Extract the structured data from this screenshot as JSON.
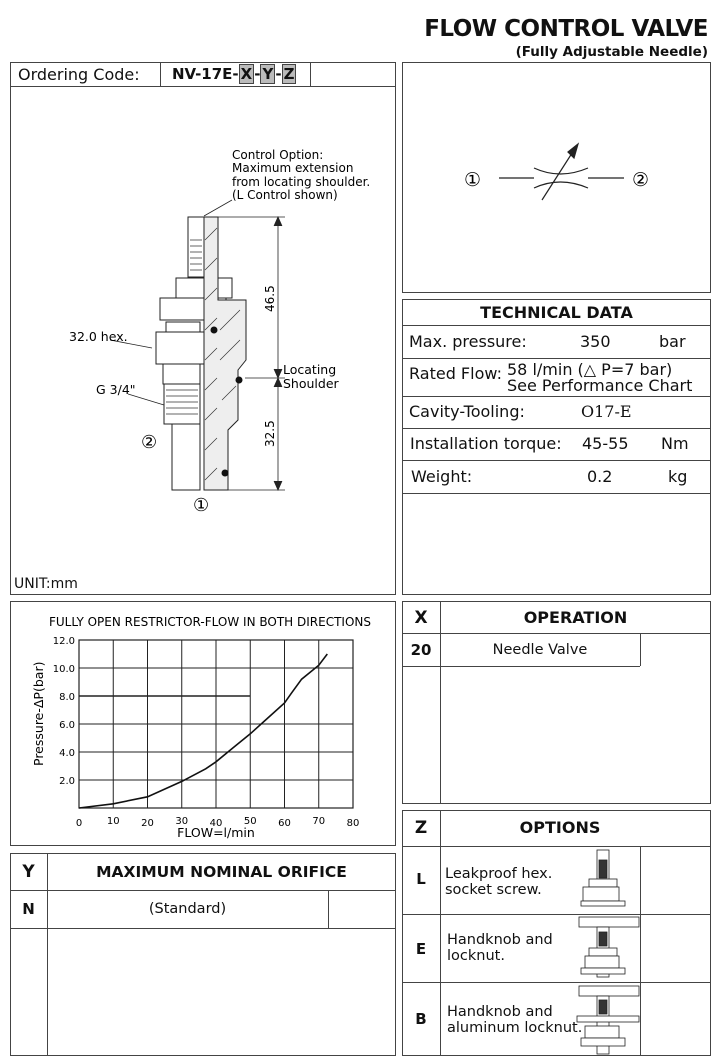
{
  "header": {
    "title": "FLOW CONTROL VALVE",
    "subtitle": "(Fully Adjustable Needle)"
  },
  "ordering": {
    "label": "Ordering Code:",
    "code_prefix": "NV-17E-",
    "x": "X",
    "y": "Y",
    "z": "Z"
  },
  "drawing": {
    "control_note": [
      "Control Option:",
      "Maximum extension",
      "from locating shoulder.",
      "(L Control shown)"
    ],
    "dim_upper": "46.5",
    "dim_lower": "32.5",
    "shoulder": [
      "Locating",
      "Shoulder"
    ],
    "hex": "32.0 hex.",
    "thread": "G 3/4\"",
    "port1": "①",
    "port2": "②",
    "unit": "UNIT:mm"
  },
  "symbol": {
    "port1": "①",
    "port2": "②"
  },
  "technical": {
    "title": "TECHNICAL DATA",
    "max_pressure": {
      "label": "Max. pressure:",
      "value": "350",
      "unit": "bar"
    },
    "rated_flow": {
      "label": "Rated Flow:",
      "value": "58 l/min (△ P=7 bar)",
      "note": "See Performance Chart"
    },
    "cavity": {
      "label": "Cavity-Tooling:",
      "value": "O17-E"
    },
    "torque": {
      "label": "Installation torque:",
      "value": "45-55",
      "unit": "Nm"
    },
    "weight": {
      "label": "Weight:",
      "value": "0.2",
      "unit": "kg"
    }
  },
  "operation": {
    "code": "X",
    "title": "OPERATION",
    "rows": [
      {
        "code": "20",
        "label": "Needle Valve"
      }
    ]
  },
  "orifice": {
    "code": "Y",
    "title": "MAXIMUM NOMINAL ORIFICE",
    "rows": [
      {
        "code": "N",
        "label": "(Standard)"
      }
    ]
  },
  "options": {
    "code": "Z",
    "title": "OPTIONS",
    "rows": [
      {
        "code": "L",
        "label": [
          "Leakproof hex.",
          "socket screw."
        ]
      },
      {
        "code": "E",
        "label": [
          "Handknob and",
          "locknut."
        ]
      },
      {
        "code": "B",
        "label": [
          "Handknob and",
          "aluminum locknut."
        ]
      }
    ]
  },
  "chart_data": {
    "type": "line",
    "title": "FULLY OPEN RESTRICTOR-FLOW IN BOTH DIRECTIONS",
    "xlabel": "FLOW=l/min",
    "ylabel": "Pressure-ΔP(bar)",
    "xlim": [
      0,
      80
    ],
    "ylim": [
      0,
      12
    ],
    "xticks": [
      "0",
      "10",
      "20",
      "30",
      "40",
      "50",
      "60",
      "70",
      "80"
    ],
    "yticks": [
      "2.0",
      "4.0",
      "6.0",
      "8.0",
      "10.0",
      "12.0"
    ],
    "grid": true,
    "x": [
      0,
      10,
      20,
      30,
      37,
      40,
      45,
      50,
      55,
      60,
      62,
      65,
      70,
      72.5
    ],
    "y": [
      0,
      0.3,
      0.8,
      1.9,
      2.8,
      3.3,
      4.3,
      5.3,
      6.4,
      7.5,
      8.2,
      9.2,
      10.2,
      11
    ]
  }
}
